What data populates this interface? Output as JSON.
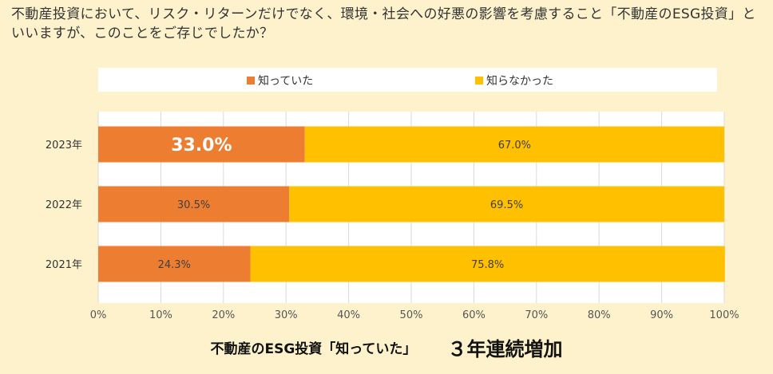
{
  "question": "不動産投資において、リスク・リターンだけでなく、環境・社会への好悪の影響を考慮すること「不動産のESG投資」といいますが、このことをご存じでしたか？",
  "footer": {
    "text": "不動産のESG投資「知っていた」",
    "emphasis": "３年連続増加"
  },
  "colors": {
    "background": "#FEF2CC",
    "knew": "#ED7D31",
    "didnt_know": "#FFC000",
    "grid": "#D9D9D9"
  },
  "chart_data": {
    "type": "bar",
    "orientation": "horizontal",
    "stacked": true,
    "categories": [
      "2023年",
      "2022年",
      "2021年"
    ],
    "series": [
      {
        "name": "知っていた",
        "values": [
          33.0,
          30.5,
          24.3
        ],
        "labels": [
          "33.0%",
          "30.5%",
          "24.3%"
        ]
      },
      {
        "name": "知らなかった",
        "values": [
          67.0,
          69.5,
          75.8
        ],
        "labels": [
          "67.0%",
          "69.5%",
          "75.8%"
        ]
      }
    ],
    "highlight": {
      "series": 0,
      "index": 0
    },
    "xlim": [
      0,
      100
    ],
    "xticks": [
      0,
      10,
      20,
      30,
      40,
      50,
      60,
      70,
      80,
      90,
      100
    ],
    "xtick_labels": [
      "0%",
      "10%",
      "20%",
      "30%",
      "40%",
      "50%",
      "60%",
      "70%",
      "80%",
      "90%",
      "100%"
    ],
    "grid": true,
    "legend_position": "top"
  }
}
